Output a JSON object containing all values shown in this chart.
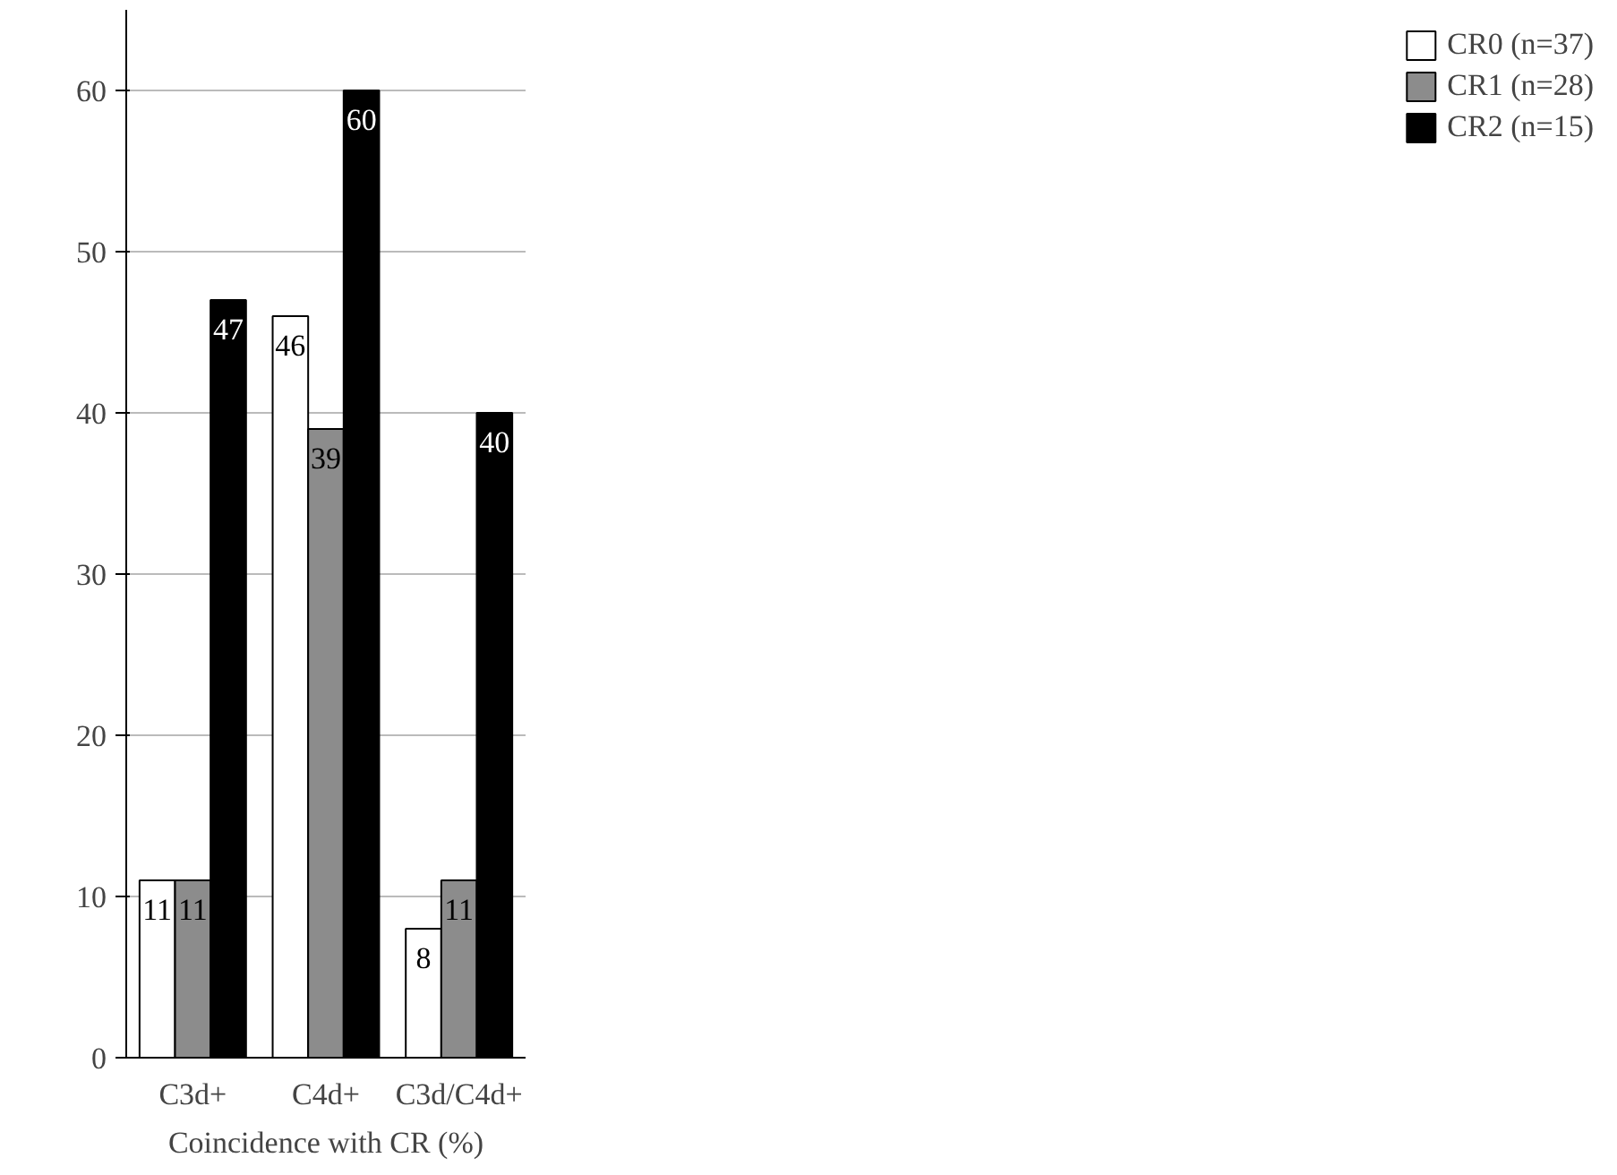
{
  "chart_data": {
    "type": "bar",
    "xlabel": "Coincidence with CR (%)",
    "categories": [
      "C3d+",
      "C4d+",
      "C3d/C4d+"
    ],
    "series": [
      {
        "name": "CR0 (n=37)",
        "color": "#ffffff",
        "values": [
          11,
          46,
          8
        ]
      },
      {
        "name": "CR1 (n=28)",
        "color": "#8c8c8c",
        "values": [
          11,
          39,
          11
        ]
      },
      {
        "name": "CR2 (n=15)",
        "color": "#000000",
        "values": [
          47,
          60,
          40
        ]
      }
    ],
    "ylim": [
      0,
      65
    ],
    "yticks": [
      0,
      10,
      20,
      30,
      40,
      50,
      60
    ],
    "grid": "y",
    "legend": "top right",
    "data_labels": true
  }
}
